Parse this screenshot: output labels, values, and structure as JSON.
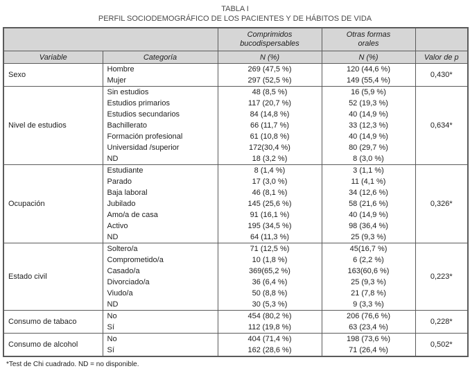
{
  "page": {
    "title_line1": "TABLA I",
    "title_line2": "PERFIL SOCIODEMOGRÁFICO DE LOS PACIENTES Y DE HÁBITOS DE VIDA",
    "footnote": "*Test de Chi cuadrado. ND = no disponible."
  },
  "table": {
    "group_headers": [
      "Comprimidos\nbucodispersables",
      "Otras formas\norales"
    ],
    "column_headers": [
      "Variable",
      "Categoría",
      "N (%)",
      "N (%)",
      "Valor de p"
    ],
    "sections": [
      {
        "variable": "Sexo",
        "p_value": "0,430*",
        "rows": [
          {
            "category": "Hombre",
            "n1": "269 (47,5 %)",
            "n2": "120 (44,6 %)"
          },
          {
            "category": "Mujer",
            "n1": "297 (52,5 %)",
            "n2": "149 (55,4 %)"
          }
        ]
      },
      {
        "variable": "Nivel de estudios",
        "p_value": "0,634*",
        "rows": [
          {
            "category": "Sin estudios",
            "n1": "48 (8,5 %)",
            "n2": "16 (5,9 %)"
          },
          {
            "category": "Estudios primarios",
            "n1": "117 (20,7 %)",
            "n2": "52 (19,3 %)"
          },
          {
            "category": "Estudios secundarios",
            "n1": "84 (14,8 %)",
            "n2": "40 (14,9 %)"
          },
          {
            "category": "Bachillerato",
            "n1": "66 (11,7 %)",
            "n2": "33 (12,3 %)"
          },
          {
            "category": "Formación profesional",
            "n1": "61 (10,8 %)",
            "n2": "40 (14,9 %)"
          },
          {
            "category": "Universidad /superior",
            "n1": "172(30,4 %)",
            "n2": "80 (29,7 %)"
          },
          {
            "category": "ND",
            "n1": "18 (3,2 %)",
            "n2": "8 (3,0 %)"
          }
        ]
      },
      {
        "variable": "Ocupación",
        "p_value": "0,326*",
        "rows": [
          {
            "category": "Estudiante",
            "n1": "8 (1,4 %)",
            "n2": "3 (1,1 %)"
          },
          {
            "category": "Parado",
            "n1": "17 (3,0 %)",
            "n2": "11 (4,1 %)"
          },
          {
            "category": "Baja laboral",
            "n1": "46 (8,1 %)",
            "n2": "34 (12,6 %)"
          },
          {
            "category": "Jubilado",
            "n1": "145 (25,6 %)",
            "n2": "58 (21,6 %)"
          },
          {
            "category": "Amo/a de casa",
            "n1": "91 (16,1 %)",
            "n2": "40 (14,9 %)"
          },
          {
            "category": "Activo",
            "n1": "195 (34,5 %)",
            "n2": "98 (36,4 %)"
          },
          {
            "category": "ND",
            "n1": "64 (11,3 %)",
            "n2": "25 (9,3 %)"
          }
        ]
      },
      {
        "variable": "Estado civil",
        "p_value": "0,223*",
        "rows": [
          {
            "category": "Soltero/a",
            "n1": "71 (12,5 %)",
            "n2": "45(16,7 %)"
          },
          {
            "category": "Comprometido/a",
            "n1": "10 (1,8 %)",
            "n2": "6 (2,2 %)"
          },
          {
            "category": "Casado/a",
            "n1": "369(65,2 %)",
            "n2": "163(60,6 %)"
          },
          {
            "category": "Divorciado/a",
            "n1": "36 (6,4 %)",
            "n2": "25 (9,3 %)"
          },
          {
            "category": "Viudo/a",
            "n1": "50 (8,8 %)",
            "n2": "21 (7,8 %)"
          },
          {
            "category": "ND",
            "n1": "30 (5,3 %)",
            "n2": "9 (3,3 %)"
          }
        ]
      },
      {
        "variable": "Consumo de tabaco",
        "p_value": "0,228*",
        "rows": [
          {
            "category": "No",
            "n1": "454 (80,2 %)",
            "n2": "206 (76,6 %)"
          },
          {
            "category": "Sí",
            "n1": "112 (19,8 %)",
            "n2": "63 (23,4 %)"
          }
        ]
      },
      {
        "variable": "Consumo de alcohol",
        "p_value": "0,502*",
        "rows": [
          {
            "category": "No",
            "n1": "404 (71,4 %)",
            "n2": "198 (73,6 %)"
          },
          {
            "category": "Sí",
            "n1": "162 (28,6 %)",
            "n2": "71 (26,4 %)"
          }
        ]
      }
    ]
  }
}
